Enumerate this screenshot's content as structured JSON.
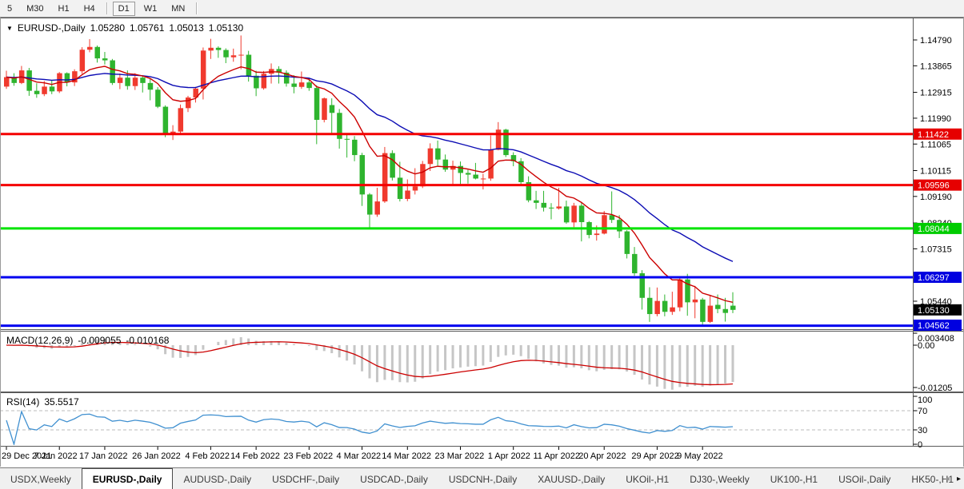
{
  "icons": {
    "dropdown": "▼",
    "tab_scroll_left": "◂",
    "tab_scroll_right": "▸"
  },
  "toolbar": {
    "periods": [
      {
        "label": "5",
        "active": false
      },
      {
        "label": "M30",
        "active": false
      },
      {
        "label": "H1",
        "active": false
      },
      {
        "label": "H4",
        "active": false
      },
      {
        "label": "D1",
        "active": true
      },
      {
        "label": "W1",
        "active": false
      },
      {
        "label": "MN",
        "active": false
      }
    ]
  },
  "chart": {
    "title_symbol": "EURUSD-,Daily",
    "ohlc": {
      "open": "1.05280",
      "high": "1.05761",
      "low": "1.05013",
      "close": "1.05130"
    },
    "price_axis_ticks": [
      "1.14790",
      "1.13865",
      "1.12915",
      "1.11990",
      "1.11065",
      "1.10115",
      "1.09190",
      "1.08240",
      "1.07315",
      "1.05440"
    ],
    "hlines": [
      {
        "label": "1.11422",
        "price": 1.11422,
        "color": "#f40000",
        "badge": "#e60000"
      },
      {
        "label": "1.09596",
        "price": 1.09596,
        "color": "#f40000",
        "badge": "#e60000"
      },
      {
        "label": "1.08044",
        "price": 1.08044,
        "color": "#00e400",
        "badge": "#00cc00"
      },
      {
        "label": "1.06297",
        "price": 1.06297,
        "color": "#0000f0",
        "badge": "#0000e0"
      },
      {
        "label": "1.04562",
        "price": 1.04562,
        "color": "#0000f0",
        "badge": "#0000e0"
      }
    ],
    "current_price": {
      "label": "1.05130",
      "price": 1.0513,
      "badge": "#000000"
    },
    "colors": {
      "up": "#f03a2e",
      "down": "#2eb42e",
      "ma_fast": "#cc0000",
      "ma_slow": "#0c0cb4"
    }
  },
  "chart_data": {
    "type": "candlestick",
    "symbol": "EURUSD-,Daily",
    "note": "values as [open,high,low,close], red=up green=down",
    "candles": [
      [
        1.1312,
        1.1369,
        1.1304,
        1.1346
      ],
      [
        1.1346,
        1.136,
        1.1315,
        1.1325
      ],
      [
        1.1325,
        1.1386,
        1.1321,
        1.137
      ],
      [
        1.137,
        1.1379,
        1.1279,
        1.1297
      ],
      [
        1.1297,
        1.1324,
        1.1272,
        1.1285
      ],
      [
        1.1285,
        1.1332,
        1.1278,
        1.1312
      ],
      [
        1.1312,
        1.1333,
        1.1285,
        1.1295
      ],
      [
        1.1295,
        1.1364,
        1.1289,
        1.136
      ],
      [
        1.136,
        1.1363,
        1.1313,
        1.1327
      ],
      [
        1.1327,
        1.1374,
        1.1314,
        1.1367
      ],
      [
        1.1367,
        1.1453,
        1.1358,
        1.1444
      ],
      [
        1.1444,
        1.1482,
        1.1435,
        1.1454
      ],
      [
        1.1454,
        1.1459,
        1.1398,
        1.1413
      ],
      [
        1.1413,
        1.1436,
        1.1391,
        1.1406
      ],
      [
        1.1406,
        1.1411,
        1.1318,
        1.1325
      ],
      [
        1.1325,
        1.1359,
        1.1303,
        1.1344
      ],
      [
        1.1344,
        1.137,
        1.1301,
        1.1314
      ],
      [
        1.1314,
        1.136,
        1.13,
        1.1344
      ],
      [
        1.1344,
        1.1349,
        1.1291,
        1.1325
      ],
      [
        1.1325,
        1.1339,
        1.1263,
        1.1301
      ],
      [
        1.1301,
        1.131,
        1.1235,
        1.124
      ],
      [
        1.124,
        1.1245,
        1.1131,
        1.1144
      ],
      [
        1.1144,
        1.1174,
        1.1121,
        1.1151
      ],
      [
        1.1151,
        1.1248,
        1.1141,
        1.1235
      ],
      [
        1.1235,
        1.1279,
        1.1221,
        1.1273
      ],
      [
        1.1273,
        1.1311,
        1.1255,
        1.1305
      ],
      [
        1.1305,
        1.1452,
        1.1266,
        1.1441
      ],
      [
        1.1441,
        1.1483,
        1.1411,
        1.1451
      ],
      [
        1.1451,
        1.1456,
        1.1415,
        1.1443
      ],
      [
        1.1443,
        1.1449,
        1.1396,
        1.1417
      ],
      [
        1.1417,
        1.1448,
        1.1401,
        1.1424
      ],
      [
        1.1424,
        1.1495,
        1.1374,
        1.1426
      ],
      [
        1.1426,
        1.144,
        1.133,
        1.1351
      ],
      [
        1.1351,
        1.1369,
        1.1278,
        1.1306
      ],
      [
        1.1306,
        1.1368,
        1.1301,
        1.1358
      ],
      [
        1.1358,
        1.1395,
        1.1323,
        1.1375
      ],
      [
        1.1375,
        1.1385,
        1.1323,
        1.1362
      ],
      [
        1.1362,
        1.137,
        1.1312,
        1.1323
      ],
      [
        1.1323,
        1.1353,
        1.1288,
        1.1311
      ],
      [
        1.1311,
        1.1366,
        1.1304,
        1.1327
      ],
      [
        1.1327,
        1.1344,
        1.1297,
        1.1307
      ],
      [
        1.1307,
        1.1317,
        1.1106,
        1.1193
      ],
      [
        1.1193,
        1.1273,
        1.1184,
        1.127
      ],
      [
        1.1246,
        1.127,
        1.1144,
        1.1218
      ],
      [
        1.1218,
        1.1232,
        1.109,
        1.1125
      ],
      [
        1.1125,
        1.1139,
        1.1058,
        1.1122
      ],
      [
        1.1122,
        1.1135,
        1.1045,
        1.1067
      ],
      [
        1.1067,
        1.1075,
        1.0885,
        1.0926
      ],
      [
        1.0926,
        1.0931,
        1.0806,
        1.0854
      ],
      [
        1.0854,
        1.095,
        1.0846,
        1.0901
      ],
      [
        1.0901,
        1.1096,
        1.0896,
        1.1074
      ],
      [
        1.1074,
        1.1084,
        1.0976,
        1.0986
      ],
      [
        1.0986,
        1.1043,
        1.0901,
        1.091
      ],
      [
        1.091,
        1.098,
        1.0902,
        1.094
      ],
      [
        1.094,
        1.102,
        1.0926,
        1.0955
      ],
      [
        1.0955,
        1.1046,
        1.0949,
        1.1035
      ],
      [
        1.1035,
        1.1109,
        1.101,
        1.1091
      ],
      [
        1.1091,
        1.1119,
        1.1029,
        1.1051
      ],
      [
        1.1051,
        1.1069,
        1.1007,
        1.1015
      ],
      [
        1.1015,
        1.1047,
        1.0963,
        1.1028
      ],
      [
        1.1028,
        1.1044,
        1.0963,
        1.1003
      ],
      [
        1.1003,
        1.1014,
        1.0965,
        1.0997
      ],
      [
        1.0997,
        1.1039,
        1.098,
        1.0983
      ],
      [
        1.0983,
        1.1,
        1.0944,
        1.0983
      ],
      [
        1.0983,
        1.1137,
        1.0975,
        1.1086
      ],
      [
        1.1086,
        1.1185,
        1.1084,
        1.1158
      ],
      [
        1.1158,
        1.1161,
        1.106,
        1.1067
      ],
      [
        1.1067,
        1.1077,
        1.1027,
        1.1045
      ],
      [
        1.1045,
        1.1056,
        1.096,
        1.097
      ],
      [
        1.097,
        1.0991,
        1.0898,
        1.0905
      ],
      [
        1.0905,
        1.0939,
        1.0874,
        1.0896
      ],
      [
        1.0896,
        1.0939,
        1.0865,
        1.0879
      ],
      [
        1.0879,
        1.0895,
        1.0837,
        1.0876
      ],
      [
        1.0876,
        1.095,
        1.0872,
        1.0883
      ],
      [
        1.0883,
        1.0904,
        1.0821,
        1.0826
      ],
      [
        1.0826,
        1.0896,
        1.0809,
        1.0886
      ],
      [
        1.0886,
        1.0896,
        1.0758,
        1.0827
      ],
      [
        1.0827,
        1.0831,
        1.0769,
        1.0781
      ],
      [
        1.0781,
        1.0815,
        1.0761,
        1.0786
      ],
      [
        1.0786,
        1.0867,
        1.0783,
        1.0852
      ],
      [
        1.0852,
        1.0937,
        1.0824,
        1.0835
      ],
      [
        1.0835,
        1.0852,
        1.077,
        1.0794
      ],
      [
        1.0794,
        1.0798,
        1.0697,
        1.0713
      ],
      [
        1.0713,
        1.0738,
        1.0635,
        1.0644
      ],
      [
        1.0644,
        1.0655,
        1.0514,
        1.0556
      ],
      [
        1.0556,
        1.0594,
        1.047,
        1.0498
      ],
      [
        1.0498,
        1.0593,
        1.049,
        1.0545
      ],
      [
        1.0545,
        1.0568,
        1.049,
        1.0506
      ],
      [
        1.0506,
        1.0578,
        1.0495,
        1.0522
      ],
      [
        1.0522,
        1.063,
        1.0508,
        1.0622
      ],
      [
        1.0622,
        1.0642,
        1.0492,
        1.054
      ],
      [
        1.054,
        1.0599,
        1.0483,
        1.055
      ],
      [
        1.055,
        1.0556,
        1.046,
        1.047
      ],
      [
        1.047,
        1.0564,
        1.0466,
        1.0528
      ],
      [
        1.0531,
        1.0568,
        1.0501,
        1.0516
      ],
      [
        1.0516,
        1.0556,
        1.0471,
        1.0502
      ],
      [
        1.0528,
        1.05761,
        1.05013,
        1.0513
      ]
    ]
  },
  "macd": {
    "label": "MACD(12,26,9)",
    "value_macd": "-0.009055",
    "value_signal": "-0.010168",
    "axis_labels": [
      "0.003408",
      "0.00",
      "-0.01205"
    ],
    "axis_values": [
      0.003408,
      0,
      -0.01205
    ],
    "histogram_color": "#c6c6c6",
    "signal_color": "#cc0000"
  },
  "rsi": {
    "label": "RSI(14)",
    "value": "35.5517",
    "axis_labels": [
      "100",
      "70",
      "30",
      "0"
    ],
    "axis_values": [
      100,
      70,
      30,
      0
    ],
    "levels": [
      70,
      30
    ],
    "line_color": "#4090d0"
  },
  "time_axis": {
    "labels": [
      {
        "text": "29 Dec 2021",
        "i": 0
      },
      {
        "text": "7 Jan 2022",
        "i": 7
      },
      {
        "text": "17 Jan 2022",
        "i": 13
      },
      {
        "text": "26 Jan 2022",
        "i": 20
      },
      {
        "text": "4 Feb 2022",
        "i": 27
      },
      {
        "text": "14 Feb 2022",
        "i": 33
      },
      {
        "text": "23 Feb 2022",
        "i": 40
      },
      {
        "text": "4 Mar 2022",
        "i": 47
      },
      {
        "text": "14 Mar 2022",
        "i": 53
      },
      {
        "text": "23 Mar 2022",
        "i": 60
      },
      {
        "text": "1 Apr 2022",
        "i": 67
      },
      {
        "text": "11 Apr 2022",
        "i": 73
      },
      {
        "text": "20 Apr 2022",
        "i": 79
      },
      {
        "text": "29 Apr 2022",
        "i": 86
      },
      {
        "text": "9 May 2022",
        "i": 92
      }
    ]
  },
  "tabs": {
    "items": [
      {
        "label": "USDX,Weekly",
        "active": false
      },
      {
        "label": "EURUSD-,Daily",
        "active": true
      },
      {
        "label": "AUDUSD-,Daily",
        "active": false
      },
      {
        "label": "USDCHF-,Daily",
        "active": false
      },
      {
        "label": "USDCAD-,Daily",
        "active": false
      },
      {
        "label": "USDCNH-,Daily",
        "active": false
      },
      {
        "label": "XAUUSD-,Daily",
        "active": false
      },
      {
        "label": "UKOil-,H1",
        "active": false
      },
      {
        "label": "DJ30-,Weekly",
        "active": false
      },
      {
        "label": "UK100-,H1",
        "active": false
      },
      {
        "label": "USOil-,Daily",
        "active": false
      },
      {
        "label": "HK50-,H1",
        "active": false
      }
    ]
  }
}
